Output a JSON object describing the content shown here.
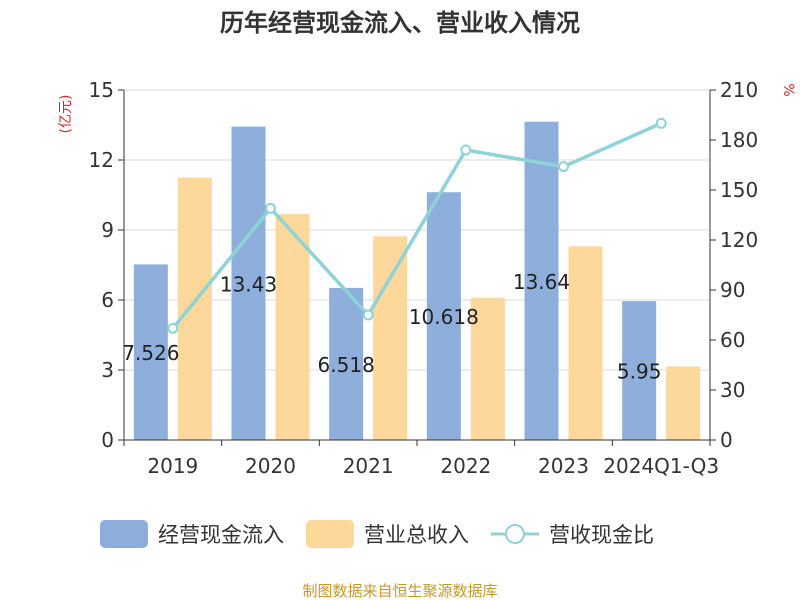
{
  "chart_data": {
    "type": "bar",
    "title": "历年经营现金流入、营业收入情况",
    "categories": [
      "2019",
      "2020",
      "2021",
      "2022",
      "2023",
      "2024Q1-Q3"
    ],
    "y_left_unit": "(亿元)",
    "y_right_unit": "%",
    "y_left_lim": [
      0,
      15
    ],
    "y_left_ticks": [
      "0",
      "3",
      "6",
      "9",
      "12",
      "15"
    ],
    "y_right_lim": [
      0,
      210
    ],
    "y_right_ticks": [
      "0",
      "30",
      "60",
      "90",
      "120",
      "150",
      "180",
      "210"
    ],
    "grid": true,
    "legend_position": "bottom",
    "series": [
      {
        "name": "经营现金流入",
        "type": "bar",
        "axis": "left",
        "color": "#8eaedb",
        "values": [
          7.526,
          13.43,
          6.518,
          10.618,
          13.64,
          5.95
        ],
        "labels": [
          "7.526",
          "13.43",
          "6.518",
          "10.618",
          "13.64",
          "5.95"
        ]
      },
      {
        "name": "营业总收入",
        "type": "bar",
        "axis": "left",
        "color": "#fdd89a",
        "values": [
          11.25,
          9.68,
          8.73,
          6.1,
          8.3,
          3.15
        ]
      },
      {
        "name": "营收现金比",
        "type": "line",
        "axis": "right",
        "color": "#8dd3d7",
        "values": [
          67,
          139,
          75,
          174,
          164,
          190
        ]
      }
    ],
    "source": "制图数据来自恒生聚源数据库"
  },
  "colors": {
    "unit_label": "#d9262a",
    "source_text": "#c49a2c",
    "axis": "#333333",
    "grid": "#d9d9d9"
  }
}
